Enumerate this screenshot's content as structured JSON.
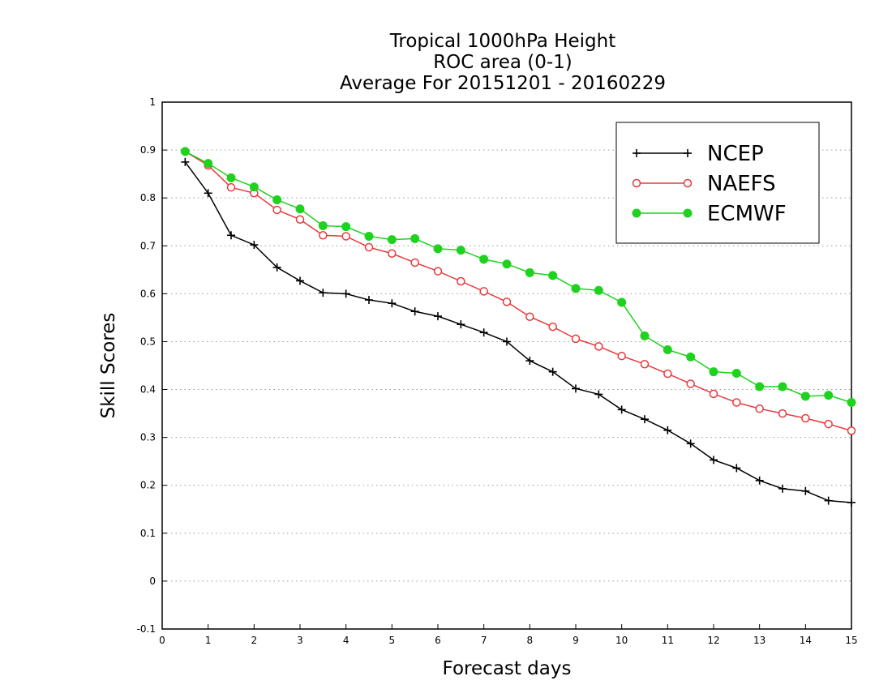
{
  "chart_data": {
    "type": "line",
    "title_lines": [
      "Tropical 1000hPa Height",
      "ROC area (0-1)",
      "Average For 20151201 - 20160229"
    ],
    "xlabel": "Forecast days",
    "ylabel": "Skill Scores",
    "xlim": [
      0,
      15
    ],
    "ylim": [
      -0.1,
      1
    ],
    "x_ticks": [
      0,
      1,
      2,
      3,
      4,
      5,
      6,
      7,
      8,
      9,
      10,
      11,
      12,
      13,
      14,
      15
    ],
    "y_ticks": [
      -0.1,
      0,
      0.1,
      0.2,
      0.3,
      0.4,
      0.5,
      0.6,
      0.7,
      0.8,
      0.9,
      1
    ],
    "y_tick_labels": [
      "-0.1",
      "0",
      "0.1",
      "0.2",
      "0.3",
      "0.4",
      "0.5",
      "0.6",
      "0.7",
      "0.8",
      "0.9",
      "1"
    ],
    "grid": "horizontal dotted",
    "legend_position": "top-right",
    "x": [
      0.5,
      1,
      1.5,
      2,
      2.5,
      3,
      3.5,
      4,
      4.5,
      5,
      5.5,
      6,
      6.5,
      7,
      7.5,
      8,
      8.5,
      9,
      9.5,
      10,
      10.5,
      11,
      11.5,
      12,
      12.5,
      13,
      13.5,
      14,
      14.5,
      15
    ],
    "series": [
      {
        "name": "NCEP",
        "color": "#000000",
        "marker": "plus",
        "values": [
          0.875,
          0.81,
          0.722,
          0.702,
          0.655,
          0.627,
          0.602,
          0.6,
          0.587,
          0.58,
          0.563,
          0.553,
          0.536,
          0.519,
          0.5,
          0.46,
          0.437,
          0.402,
          0.39,
          0.358,
          0.338,
          0.315,
          0.287,
          0.253,
          0.236,
          0.21,
          0.193,
          0.188,
          0.168,
          0.164
        ]
      },
      {
        "name": "NAEFS",
        "color": "#e8393b",
        "marker": "open-circle",
        "values": [
          0.897,
          0.868,
          0.822,
          0.81,
          0.775,
          0.755,
          0.722,
          0.72,
          0.697,
          0.684,
          0.665,
          0.647,
          0.626,
          0.605,
          0.583,
          0.552,
          0.531,
          0.506,
          0.49,
          0.47,
          0.453,
          0.433,
          0.412,
          0.391,
          0.373,
          0.36,
          0.35,
          0.34,
          0.328,
          0.314
        ]
      },
      {
        "name": "ECMWF",
        "color": "#1ed21e",
        "marker": "filled-circle",
        "values": [
          0.897,
          0.872,
          0.842,
          0.823,
          0.796,
          0.777,
          0.742,
          0.74,
          0.72,
          0.713,
          0.715,
          0.694,
          0.691,
          0.672,
          0.662,
          0.644,
          0.638,
          0.611,
          0.607,
          0.582,
          0.512,
          0.483,
          0.468,
          0.437,
          0.434,
          0.406,
          0.406,
          0.386,
          0.388,
          0.373
        ]
      }
    ]
  }
}
